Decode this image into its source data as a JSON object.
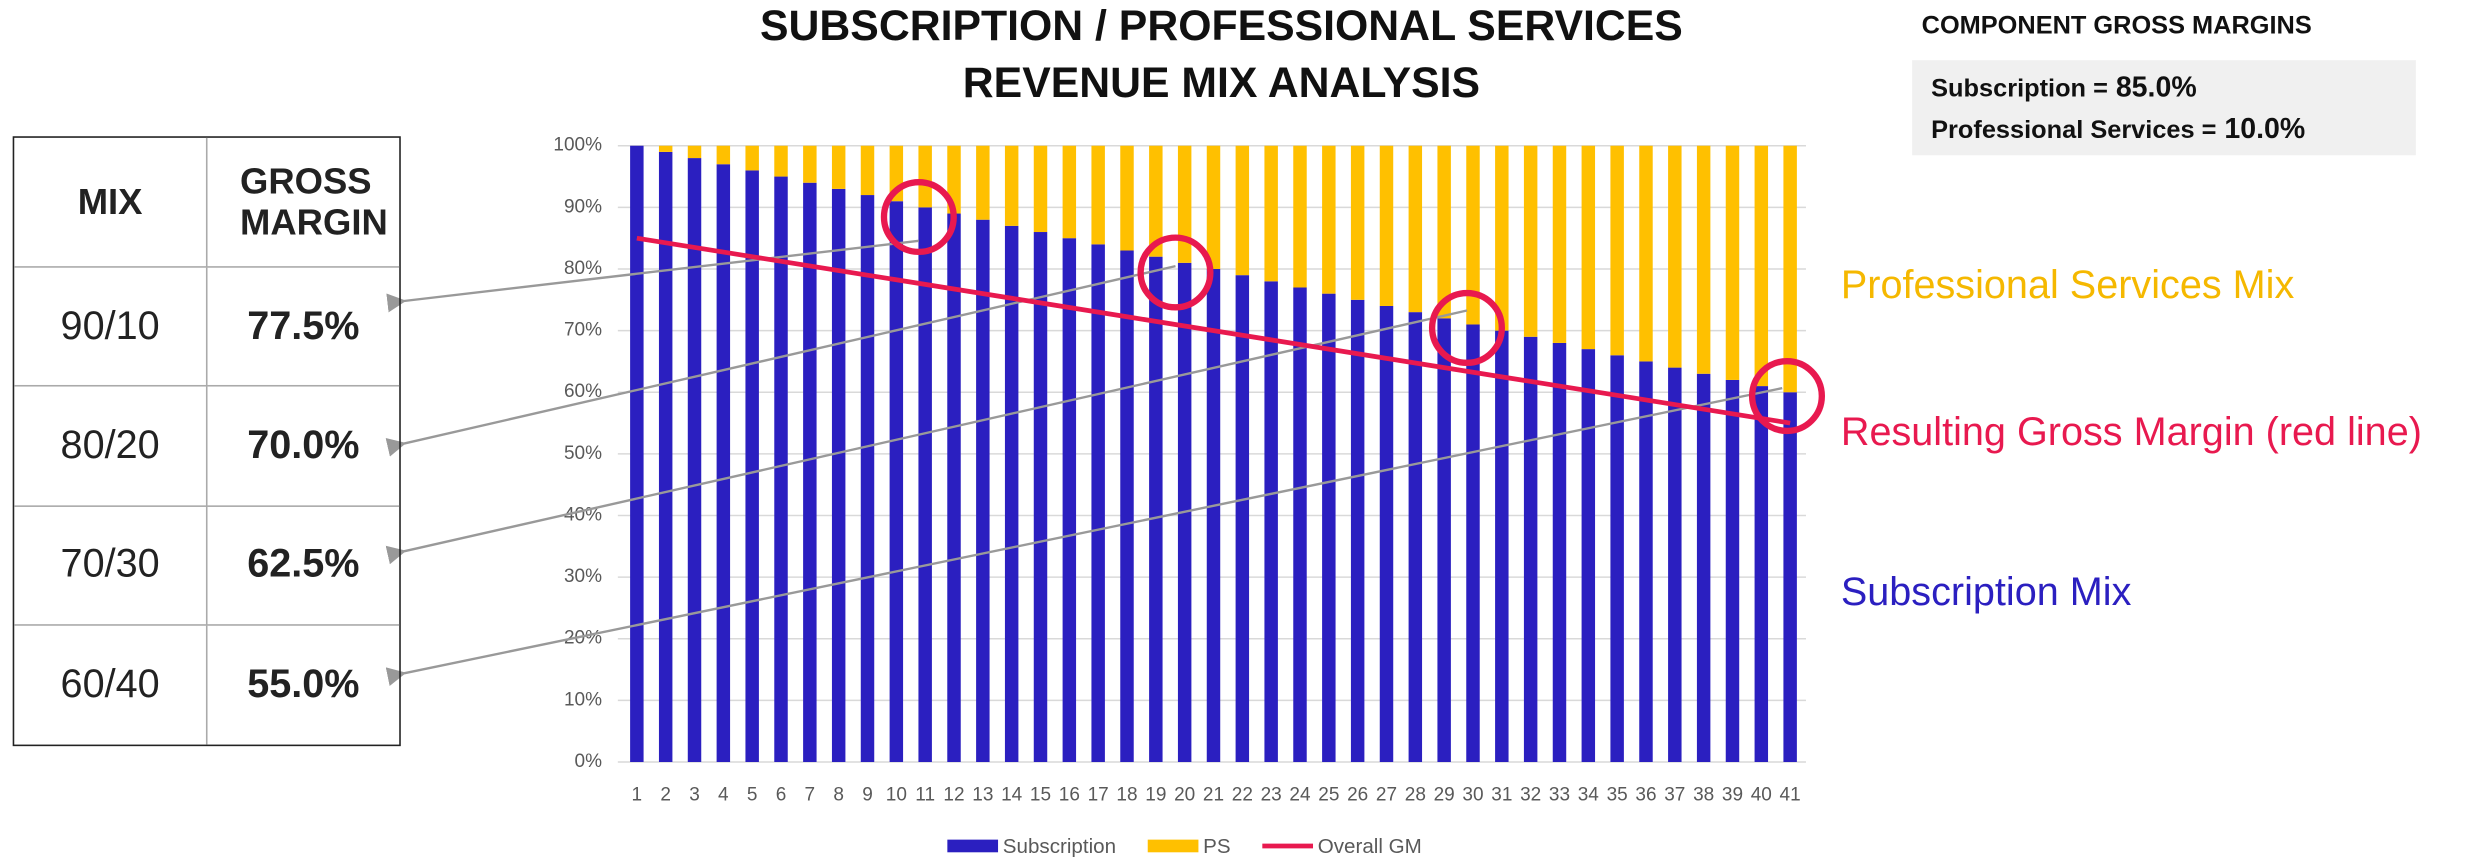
{
  "title": [
    "SUBSCRIPTION / PROFESSIONAL SERVICES",
    "REVENUE MIX ANALYSIS"
  ],
  "table": {
    "header": [
      "MIX",
      "GROSS MARGIN"
    ],
    "rows": [
      [
        "90/10",
        "77.5%"
      ],
      [
        "80/20",
        "70.0%"
      ],
      [
        "70/30",
        "62.5%"
      ],
      [
        "60/40",
        "55.0%"
      ]
    ]
  },
  "component_margins": {
    "title": "COMPONENT GROSS MARGINS",
    "items": [
      {
        "label": "Subscription =",
        "value": "85.0%"
      },
      {
        "label": "Professional Services =",
        "value": "10.0%"
      }
    ]
  },
  "chart_data": {
    "type": "bar",
    "stacked": true,
    "categories": [
      "1",
      "2",
      "3",
      "4",
      "5",
      "6",
      "7",
      "8",
      "9",
      "10",
      "11",
      "12",
      "13",
      "14",
      "15",
      "16",
      "17",
      "18",
      "19",
      "20",
      "21",
      "22",
      "23",
      "24",
      "25",
      "26",
      "27",
      "28",
      "29",
      "30",
      "31",
      "32",
      "33",
      "34",
      "35",
      "36",
      "37",
      "38",
      "39",
      "40",
      "41"
    ],
    "series": [
      {
        "name": "Subscription",
        "color": "#2b1fc0",
        "values": [
          100,
          99,
          98,
          97,
          96,
          95,
          94,
          93,
          92,
          91,
          90,
          89,
          88,
          87,
          86,
          85,
          84,
          83,
          82,
          81,
          80,
          79,
          78,
          77,
          76,
          75,
          74,
          73,
          72,
          71,
          70,
          69,
          68,
          67,
          66,
          65,
          64,
          63,
          62,
          61,
          60
        ]
      },
      {
        "name": "PS",
        "color": "#ffc000",
        "values": [
          0,
          1,
          2,
          3,
          4,
          5,
          6,
          7,
          8,
          9,
          10,
          11,
          12,
          13,
          14,
          15,
          16,
          17,
          18,
          19,
          20,
          21,
          22,
          23,
          24,
          25,
          26,
          27,
          28,
          29,
          30,
          31,
          32,
          33,
          34,
          35,
          36,
          37,
          38,
          39,
          40
        ]
      },
      {
        "name": "Overall GM",
        "color": "#e8194f",
        "type": "line",
        "values": [
          85,
          84.25,
          83.5,
          82.75,
          82,
          81.25,
          80.5,
          79.75,
          79,
          78.25,
          77.5,
          76.75,
          76,
          75.25,
          74.5,
          73.75,
          73,
          72.25,
          71.5,
          70.75,
          70,
          69.25,
          68.5,
          67.75,
          67,
          66.25,
          65.5,
          64.75,
          64,
          63.25,
          62.5,
          61.75,
          61,
          60.25,
          59.5,
          58.75,
          58,
          57.25,
          56.5,
          55.75,
          55
        ]
      }
    ],
    "ylim": [
      0,
      100
    ],
    "yticks": [
      {
        "value": 0,
        "label": "0%"
      },
      {
        "value": 10,
        "label": "10%"
      },
      {
        "value": 20,
        "label": "20%"
      },
      {
        "value": 30,
        "label": "30%"
      },
      {
        "value": 40,
        "label": "40%"
      },
      {
        "value": 50,
        "label": "50%"
      },
      {
        "value": 60,
        "label": "60%"
      },
      {
        "value": 70,
        "label": "70%"
      },
      {
        "value": 80,
        "label": "80%"
      },
      {
        "value": 90,
        "label": "90%"
      },
      {
        "value": 100,
        "label": "100%"
      }
    ],
    "grid": true,
    "legend": "bottom",
    "annotations": [
      {
        "text": "Professional Services Mix",
        "color": "#f5b800"
      },
      {
        "text": "Resulting Gross Margin (red line)",
        "color": "#e8194f"
      },
      {
        "text": "Subscription Mix",
        "color": "#2b1fc0"
      }
    ]
  }
}
